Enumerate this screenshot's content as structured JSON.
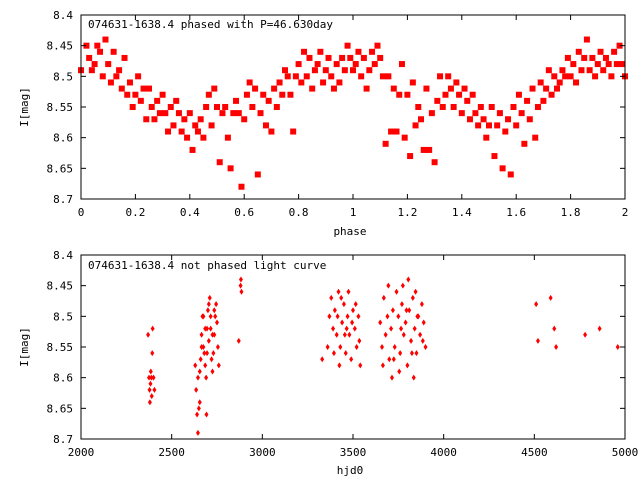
{
  "chart_data": [
    {
      "type": "scatter",
      "title": "074631-1638.4 phased with P=46.630day",
      "xlabel": "phase",
      "ylabel": "I[mag]",
      "xlim": [
        0,
        2
      ],
      "ylim": [
        8.4,
        8.7
      ],
      "y_inverted": true,
      "x_ticks": [
        "0",
        "0.2",
        "0.4",
        "0.6",
        "0.8",
        "1",
        "1.2",
        "1.4",
        "1.6",
        "1.8",
        "2"
      ],
      "y_ticks": [
        "8.4",
        "8.45",
        "8.5",
        "8.55",
        "8.6",
        "8.65",
        "8.7"
      ],
      "grid": false,
      "legend": "none",
      "marker": "filled-square",
      "color": "#ff0000",
      "points": [
        [
          0.0,
          8.49
        ],
        [
          0.02,
          8.45
        ],
        [
          0.03,
          8.47
        ],
        [
          0.04,
          8.49
        ],
        [
          0.05,
          8.48
        ],
        [
          0.06,
          8.45
        ],
        [
          0.07,
          8.46
        ],
        [
          0.08,
          8.5
        ],
        [
          0.09,
          8.44
        ],
        [
          0.1,
          8.48
        ],
        [
          0.11,
          8.51
        ],
        [
          0.12,
          8.46
        ],
        [
          0.13,
          8.5
        ],
        [
          0.14,
          8.49
        ],
        [
          0.15,
          8.52
        ],
        [
          0.16,
          8.47
        ],
        [
          0.17,
          8.53
        ],
        [
          0.18,
          8.51
        ],
        [
          0.19,
          8.55
        ],
        [
          0.2,
          8.53
        ],
        [
          0.21,
          8.5
        ],
        [
          0.22,
          8.54
        ],
        [
          0.23,
          8.52
        ],
        [
          0.24,
          8.57
        ],
        [
          0.25,
          8.52
        ],
        [
          0.26,
          8.55
        ],
        [
          0.27,
          8.57
        ],
        [
          0.28,
          8.54
        ],
        [
          0.29,
          8.56
        ],
        [
          0.3,
          8.53
        ],
        [
          0.31,
          8.56
        ],
        [
          0.32,
          8.59
        ],
        [
          0.33,
          8.55
        ],
        [
          0.34,
          8.58
        ],
        [
          0.35,
          8.54
        ],
        [
          0.36,
          8.56
        ],
        [
          0.37,
          8.59
        ],
        [
          0.38,
          8.57
        ],
        [
          0.39,
          8.6
        ],
        [
          0.4,
          8.56
        ],
        [
          0.41,
          8.62
        ],
        [
          0.42,
          8.58
        ],
        [
          0.43,
          8.59
        ],
        [
          0.44,
          8.57
        ],
        [
          0.45,
          8.6
        ],
        [
          0.46,
          8.55
        ],
        [
          0.47,
          8.53
        ],
        [
          0.48,
          8.58
        ],
        [
          0.49,
          8.52
        ],
        [
          0.5,
          8.55
        ],
        [
          0.51,
          8.64
        ],
        [
          0.52,
          8.56
        ],
        [
          0.53,
          8.55
        ],
        [
          0.54,
          8.6
        ],
        [
          0.55,
          8.65
        ],
        [
          0.56,
          8.56
        ],
        [
          0.57,
          8.54
        ],
        [
          0.58,
          8.56
        ],
        [
          0.59,
          8.68
        ],
        [
          0.6,
          8.57
        ],
        [
          0.61,
          8.53
        ],
        [
          0.62,
          8.51
        ],
        [
          0.63,
          8.55
        ],
        [
          0.64,
          8.52
        ],
        [
          0.65,
          8.66
        ],
        [
          0.66,
          8.56
        ],
        [
          0.67,
          8.53
        ],
        [
          0.68,
          8.58
        ],
        [
          0.69,
          8.54
        ],
        [
          0.7,
          8.59
        ],
        [
          0.71,
          8.52
        ],
        [
          0.72,
          8.55
        ],
        [
          0.73,
          8.51
        ],
        [
          0.74,
          8.53
        ],
        [
          0.75,
          8.49
        ],
        [
          0.76,
          8.5
        ],
        [
          0.77,
          8.53
        ],
        [
          0.78,
          8.59
        ],
        [
          0.79,
          8.5
        ],
        [
          0.8,
          8.48
        ],
        [
          0.81,
          8.51
        ],
        [
          0.82,
          8.46
        ],
        [
          0.83,
          8.5
        ],
        [
          0.84,
          8.47
        ],
        [
          0.85,
          8.52
        ],
        [
          0.86,
          8.49
        ],
        [
          0.87,
          8.48
        ],
        [
          0.88,
          8.46
        ],
        [
          0.89,
          8.51
        ],
        [
          0.9,
          8.49
        ],
        [
          0.91,
          8.47
        ],
        [
          0.92,
          8.5
        ],
        [
          0.93,
          8.52
        ],
        [
          0.94,
          8.48
        ],
        [
          0.95,
          8.51
        ],
        [
          0.96,
          8.47
        ],
        [
          0.97,
          8.49
        ],
        [
          0.98,
          8.45
        ],
        [
          0.99,
          8.47
        ],
        [
          1.0,
          8.49
        ],
        [
          1.01,
          8.48
        ],
        [
          1.02,
          8.46
        ],
        [
          1.03,
          8.5
        ],
        [
          1.04,
          8.47
        ],
        [
          1.05,
          8.52
        ],
        [
          1.06,
          8.49
        ],
        [
          1.07,
          8.46
        ],
        [
          1.08,
          8.48
        ],
        [
          1.09,
          8.45
        ],
        [
          1.1,
          8.47
        ],
        [
          1.11,
          8.5
        ],
        [
          1.12,
          8.61
        ],
        [
          1.13,
          8.5
        ],
        [
          1.14,
          8.59
        ],
        [
          1.15,
          8.52
        ],
        [
          1.16,
          8.59
        ],
        [
          1.17,
          8.53
        ],
        [
          1.18,
          8.48
        ],
        [
          1.19,
          8.6
        ],
        [
          1.2,
          8.53
        ],
        [
          1.21,
          8.63
        ],
        [
          1.22,
          8.51
        ],
        [
          1.23,
          8.58
        ],
        [
          1.24,
          8.55
        ],
        [
          1.25,
          8.57
        ],
        [
          1.26,
          8.62
        ],
        [
          1.27,
          8.52
        ],
        [
          1.28,
          8.62
        ],
        [
          1.29,
          8.56
        ],
        [
          1.3,
          8.64
        ],
        [
          1.31,
          8.54
        ],
        [
          1.32,
          8.5
        ],
        [
          1.33,
          8.55
        ],
        [
          1.34,
          8.53
        ],
        [
          1.35,
          8.5
        ],
        [
          1.36,
          8.52
        ],
        [
          1.37,
          8.55
        ],
        [
          1.38,
          8.51
        ],
        [
          1.39,
          8.53
        ],
        [
          1.4,
          8.56
        ],
        [
          1.41,
          8.52
        ],
        [
          1.42,
          8.54
        ],
        [
          1.43,
          8.57
        ],
        [
          1.44,
          8.53
        ],
        [
          1.45,
          8.56
        ],
        [
          1.46,
          8.58
        ],
        [
          1.47,
          8.55
        ],
        [
          1.48,
          8.57
        ],
        [
          1.49,
          8.6
        ],
        [
          1.5,
          8.58
        ],
        [
          1.51,
          8.55
        ],
        [
          1.52,
          8.63
        ],
        [
          1.53,
          8.58
        ],
        [
          1.54,
          8.56
        ],
        [
          1.55,
          8.65
        ],
        [
          1.56,
          8.59
        ],
        [
          1.57,
          8.57
        ],
        [
          1.58,
          8.66
        ],
        [
          1.59,
          8.55
        ],
        [
          1.6,
          8.58
        ],
        [
          1.61,
          8.53
        ],
        [
          1.62,
          8.56
        ],
        [
          1.63,
          8.61
        ],
        [
          1.64,
          8.54
        ],
        [
          1.65,
          8.57
        ],
        [
          1.66,
          8.52
        ],
        [
          1.67,
          8.6
        ],
        [
          1.68,
          8.55
        ],
        [
          1.69,
          8.51
        ],
        [
          1.7,
          8.54
        ],
        [
          1.71,
          8.52
        ],
        [
          1.72,
          8.49
        ],
        [
          1.73,
          8.53
        ],
        [
          1.74,
          8.5
        ],
        [
          1.75,
          8.52
        ],
        [
          1.76,
          8.51
        ],
        [
          1.77,
          8.49
        ],
        [
          1.78,
          8.5
        ],
        [
          1.79,
          8.47
        ],
        [
          1.8,
          8.5
        ],
        [
          1.81,
          8.48
        ],
        [
          1.82,
          8.51
        ],
        [
          1.83,
          8.46
        ],
        [
          1.84,
          8.49
        ],
        [
          1.85,
          8.47
        ],
        [
          1.86,
          8.44
        ],
        [
          1.87,
          8.49
        ],
        [
          1.88,
          8.47
        ],
        [
          1.89,
          8.5
        ],
        [
          1.9,
          8.48
        ],
        [
          1.91,
          8.46
        ],
        [
          1.92,
          8.49
        ],
        [
          1.93,
          8.47
        ],
        [
          1.94,
          8.48
        ],
        [
          1.95,
          8.5
        ],
        [
          1.96,
          8.46
        ],
        [
          1.97,
          8.48
        ],
        [
          1.98,
          8.45
        ],
        [
          1.99,
          8.48
        ],
        [
          2.0,
          8.5
        ]
      ]
    },
    {
      "type": "scatter",
      "title": "074631-1638.4 not phased light curve",
      "xlabel": "hjd0",
      "ylabel": "I[mag]",
      "xlim": [
        2000,
        5000
      ],
      "ylim": [
        8.4,
        8.7
      ],
      "y_inverted": true,
      "x_ticks": [
        "2000",
        "2500",
        "3000",
        "3500",
        "4000",
        "4500",
        "5000"
      ],
      "y_ticks": [
        "8.4",
        "8.45",
        "8.5",
        "8.55",
        "8.6",
        "8.65",
        "8.7"
      ],
      "grid": false,
      "legend": "none",
      "marker": "filled-diamond",
      "color": "#ff0000",
      "points": [
        [
          2370,
          8.53
        ],
        [
          2375,
          8.6
        ],
        [
          2378,
          8.62
        ],
        [
          2380,
          8.64
        ],
        [
          2383,
          8.61
        ],
        [
          2385,
          8.59
        ],
        [
          2388,
          8.6
        ],
        [
          2390,
          8.63
        ],
        [
          2393,
          8.56
        ],
        [
          2395,
          8.52
        ],
        [
          2400,
          8.6
        ],
        [
          2405,
          8.62
        ],
        [
          2630,
          8.58
        ],
        [
          2635,
          8.62
        ],
        [
          2640,
          8.66
        ],
        [
          2645,
          8.6
        ],
        [
          2650,
          8.65
        ],
        [
          2655,
          8.59
        ],
        [
          2660,
          8.57
        ],
        [
          2665,
          8.53
        ],
        [
          2670,
          8.5
        ],
        [
          2675,
          8.55
        ],
        [
          2680,
          8.56
        ],
        [
          2685,
          8.58
        ],
        [
          2690,
          8.6
        ],
        [
          2692,
          8.66
        ],
        [
          2695,
          8.52
        ],
        [
          2700,
          8.49
        ],
        [
          2705,
          8.54
        ],
        [
          2710,
          8.47
        ],
        [
          2715,
          8.52
        ],
        [
          2720,
          8.57
        ],
        [
          2725,
          8.59
        ],
        [
          2730,
          8.56
        ],
        [
          2735,
          8.53
        ],
        [
          2740,
          8.5
        ],
        [
          2745,
          8.48
        ],
        [
          2750,
          8.51
        ],
        [
          2755,
          8.55
        ],
        [
          2760,
          8.58
        ],
        [
          2645,
          8.69
        ],
        [
          2655,
          8.64
        ],
        [
          2665,
          8.55
        ],
        [
          2675,
          8.5
        ],
        [
          2685,
          8.52
        ],
        [
          2695,
          8.56
        ],
        [
          2705,
          8.48
        ],
        [
          2715,
          8.5
        ],
        [
          2725,
          8.53
        ],
        [
          2735,
          8.49
        ],
        [
          2870,
          8.54
        ],
        [
          2880,
          8.45
        ],
        [
          2882,
          8.44
        ],
        [
          2885,
          8.46
        ],
        [
          3330,
          8.57
        ],
        [
          3360,
          8.55
        ],
        [
          3370,
          8.5
        ],
        [
          3380,
          8.47
        ],
        [
          3390,
          8.52
        ],
        [
          3400,
          8.49
        ],
        [
          3410,
          8.53
        ],
        [
          3420,
          8.46
        ],
        [
          3430,
          8.55
        ],
        [
          3440,
          8.51
        ],
        [
          3450,
          8.48
        ],
        [
          3460,
          8.56
        ],
        [
          3470,
          8.5
        ],
        [
          3480,
          8.53
        ],
        [
          3490,
          8.57
        ],
        [
          3500,
          8.49
        ],
        [
          3510,
          8.52
        ],
        [
          3520,
          8.55
        ],
        [
          3530,
          8.5
        ],
        [
          3540,
          8.58
        ],
        [
          3395,
          8.56
        ],
        [
          3415,
          8.5
        ],
        [
          3435,
          8.47
        ],
        [
          3455,
          8.53
        ],
        [
          3475,
          8.46
        ],
        [
          3495,
          8.51
        ],
        [
          3515,
          8.48
        ],
        [
          3535,
          8.54
        ],
        [
          3425,
          8.58
        ],
        [
          3465,
          8.52
        ],
        [
          3650,
          8.51
        ],
        [
          3660,
          8.55
        ],
        [
          3670,
          8.47
        ],
        [
          3680,
          8.53
        ],
        [
          3690,
          8.5
        ],
        [
          3700,
          8.57
        ],
        [
          3710,
          8.52
        ],
        [
          3720,
          8.49
        ],
        [
          3730,
          8.55
        ],
        [
          3740,
          8.46
        ],
        [
          3750,
          8.5
        ],
        [
          3760,
          8.56
        ],
        [
          3770,
          8.48
        ],
        [
          3780,
          8.53
        ],
        [
          3790,
          8.51
        ],
        [
          3800,
          8.58
        ],
        [
          3810,
          8.49
        ],
        [
          3820,
          8.54
        ],
        [
          3830,
          8.47
        ],
        [
          3840,
          8.52
        ],
        [
          3850,
          8.56
        ],
        [
          3860,
          8.5
        ],
        [
          3870,
          8.53
        ],
        [
          3880,
          8.48
        ],
        [
          3890,
          8.51
        ],
        [
          3900,
          8.55
        ],
        [
          3755,
          8.59
        ],
        [
          3775,
          8.45
        ],
        [
          3805,
          8.44
        ],
        [
          3835,
          8.6
        ],
        [
          3665,
          8.58
        ],
        [
          3695,
          8.45
        ],
        [
          3725,
          8.57
        ],
        [
          3765,
          8.52
        ],
        [
          3795,
          8.49
        ],
        [
          3825,
          8.56
        ],
        [
          3855,
          8.5
        ],
        [
          3885,
          8.54
        ],
        [
          3715,
          8.6
        ],
        [
          3845,
          8.46
        ],
        [
          4510,
          8.48
        ],
        [
          4520,
          8.54
        ],
        [
          4590,
          8.47
        ],
        [
          4610,
          8.52
        ],
        [
          4620,
          8.55
        ],
        [
          4780,
          8.53
        ],
        [
          4860,
          8.52
        ],
        [
          4960,
          8.55
        ]
      ]
    }
  ]
}
